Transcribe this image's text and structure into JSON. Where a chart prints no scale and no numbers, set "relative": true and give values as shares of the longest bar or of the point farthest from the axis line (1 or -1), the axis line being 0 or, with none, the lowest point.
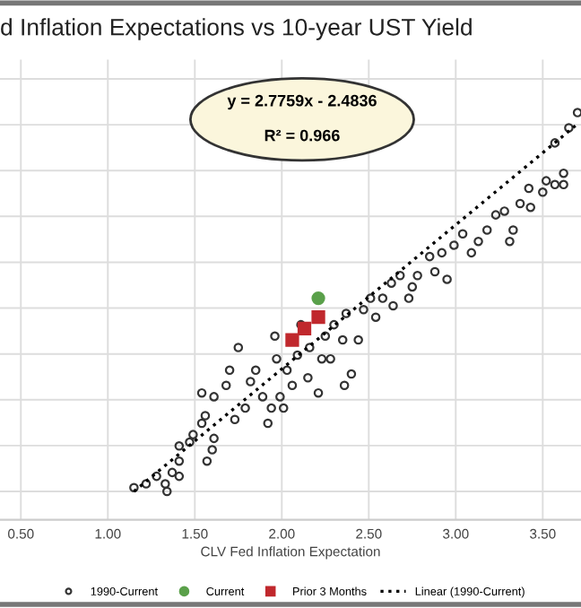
{
  "chart_data": {
    "type": "scatter",
    "title": "d Inflation Expectations vs 10-year UST Yield",
    "xlabel": "CLV Fed Inflation Expectation",
    "annotations": [
      "y = 2.7759x - 2.4836",
      "R² = 0.966"
    ],
    "relative": true,
    "xlim": [
      0.38,
      3.72
    ],
    "xticks": [
      {
        "value": 0.5,
        "label": "0.50"
      },
      {
        "value": 1.0,
        "label": "1.00"
      },
      {
        "value": 1.5,
        "label": "1.50"
      },
      {
        "value": 2.0,
        "label": "2.00"
      },
      {
        "value": 2.5,
        "label": "2.50"
      },
      {
        "value": 3.0,
        "label": "3.00"
      },
      {
        "value": 3.5,
        "label": "3.50"
      }
    ],
    "tick_labels": "x",
    "grid": true,
    "legend": "bottom",
    "series": [
      {
        "name": "1990-Current",
        "color": "#333333",
        "marker": "circle",
        "x": [
          1.15,
          1.22,
          1.28,
          1.34,
          1.33,
          1.37,
          1.41,
          1.41,
          1.41,
          1.47,
          1.49,
          1.54,
          1.57,
          1.6,
          1.61,
          1.56,
          1.54,
          1.61,
          1.68,
          1.7,
          1.75,
          1.73,
          1.79,
          1.82,
          1.85,
          1.89,
          1.92,
          1.94,
          1.97,
          1.99,
          2.01,
          1.96,
          2.03,
          2.06,
          2.09,
          2.11,
          2.15,
          2.16,
          2.21,
          2.23,
          2.25,
          2.28,
          2.3,
          2.35,
          2.36,
          2.4,
          2.37,
          2.44,
          2.47,
          2.51,
          2.54,
          2.58,
          2.63,
          2.64,
          2.68,
          2.73,
          2.75,
          2.78,
          2.85,
          2.88,
          2.92,
          2.95,
          2.99,
          3.04,
          3.09,
          3.13,
          3.18,
          3.23,
          3.28,
          3.33,
          3.31,
          3.37,
          3.43,
          3.5,
          3.57,
          3.62,
          3.42,
          3.52,
          3.62,
          3.65,
          3.7,
          3.57
        ],
        "values": [
          0.01,
          0.02,
          0.04,
          0.0,
          0.02,
          0.05,
          0.04,
          0.08,
          0.12,
          0.13,
          0.15,
          0.18,
          0.08,
          0.11,
          0.14,
          0.2,
          0.26,
          0.25,
          0.28,
          0.32,
          0.38,
          0.19,
          0.22,
          0.29,
          0.32,
          0.25,
          0.18,
          0.22,
          0.35,
          0.25,
          0.22,
          0.41,
          0.32,
          0.28,
          0.36,
          0.44,
          0.3,
          0.38,
          0.26,
          0.35,
          0.41,
          0.35,
          0.44,
          0.4,
          0.28,
          0.31,
          0.47,
          0.4,
          0.48,
          0.51,
          0.46,
          0.51,
          0.55,
          0.49,
          0.57,
          0.51,
          0.54,
          0.57,
          0.62,
          0.58,
          0.63,
          0.56,
          0.65,
          0.68,
          0.63,
          0.66,
          0.69,
          0.73,
          0.74,
          0.69,
          0.66,
          0.76,
          0.75,
          0.79,
          0.81,
          0.81,
          0.8,
          0.82,
          0.84,
          0.96,
          1.0,
          0.92
        ]
      },
      {
        "name": "Current",
        "color": "#5aa04a",
        "marker": "circle",
        "x": [
          2.21
        ],
        "values": [
          0.51
        ]
      },
      {
        "name": "Prior 3 Months",
        "color": "#c0282d",
        "marker": "square",
        "x": [
          2.06,
          2.13,
          2.21
        ],
        "values": [
          0.4,
          0.43,
          0.46
        ]
      },
      {
        "name": "Linear (1990-Current)",
        "type": "line",
        "color": "#000000",
        "line_style": "dotted",
        "x": [
          1.15,
          3.7
        ],
        "values": [
          0.0,
          0.97
        ]
      }
    ]
  }
}
